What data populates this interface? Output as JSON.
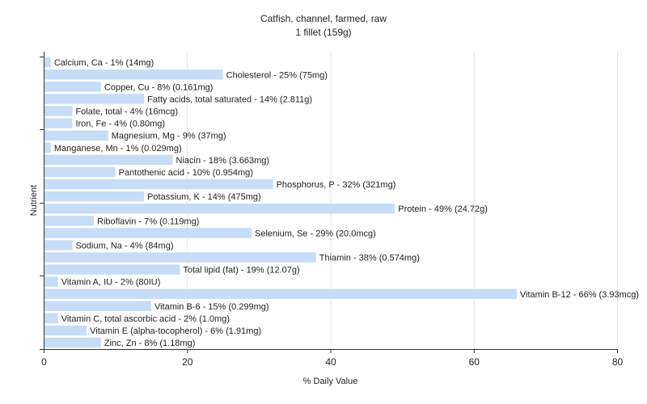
{
  "chart_data": {
    "type": "bar",
    "orientation": "horizontal",
    "title": "Catfish, channel, farmed, raw",
    "subtitle": "1 fillet (159g)",
    "xlabel": "% Daily Value",
    "ylabel": "Nutrient",
    "xlim": [
      0,
      80
    ],
    "xticks": [
      0,
      20,
      40,
      60,
      80
    ],
    "grid": true,
    "bar_color": "#c6dcf7",
    "categories": [
      "Calcium, Ca",
      "Cholesterol",
      "Copper, Cu",
      "Fatty acids, total saturated",
      "Folate, total",
      "Iron, Fe",
      "Magnesium, Mg",
      "Manganese, Mn",
      "Niacin",
      "Pantothenic acid",
      "Phosphorus, P",
      "Potassium, K",
      "Protein",
      "Riboflavin",
      "Selenium, Se",
      "Sodium, Na",
      "Thiamin",
      "Total lipid (fat)",
      "Vitamin A, IU",
      "Vitamin B-12",
      "Vitamin B-6",
      "Vitamin C, total ascorbic acid",
      "Vitamin E (alpha-tocopherol)",
      "Zinc, Zn"
    ],
    "values": [
      1,
      25,
      8,
      14,
      4,
      4,
      9,
      1,
      18,
      10,
      32,
      14,
      49,
      7,
      29,
      4,
      38,
      19,
      2,
      66,
      15,
      2,
      6,
      8
    ],
    "labels": [
      "Calcium, Ca - 1% (14mg)",
      "Cholesterol - 25% (75mg)",
      "Copper, Cu - 8% (0.161mg)",
      "Fatty acids, total saturated - 14% (2.811g)",
      "Folate, total - 4% (16mcg)",
      "Iron, Fe - 4% (0.80mg)",
      "Magnesium, Mg - 9% (37mg)",
      "Manganese, Mn - 1% (0.029mg)",
      "Niacin - 18% (3.663mg)",
      "Pantothenic acid - 10% (0.954mg)",
      "Phosphorus, P - 32% (321mg)",
      "Potassium, K - 14% (475mg)",
      "Protein - 49% (24.72g)",
      "Riboflavin - 7% (0.119mg)",
      "Selenium, Se - 29% (20.0mcg)",
      "Sodium, Na - 4% (84mg)",
      "Thiamin - 38% (0.574mg)",
      "Total lipid (fat) - 19% (12.07g)",
      "Vitamin A, IU - 2% (80IU)",
      "Vitamin B-12 - 66% (3.93mcg)",
      "Vitamin B-6 - 15% (0.299mg)",
      "Vitamin C, total ascorbic acid - 2% (1.0mg)",
      "Vitamin E (alpha-tocopherol) - 6% (1.91mg)",
      "Zinc, Zn - 8% (1.18mg)"
    ]
  }
}
